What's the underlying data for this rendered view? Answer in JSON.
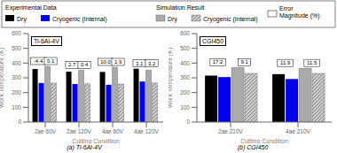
{
  "error_label": "Error\nMagnitude (%)",
  "chart_data": [
    {
      "type": "bar",
      "title": "Ti-6Al-4V",
      "subtitle": "(a)  Ti-6Al-4V",
      "xlabel": "Cutting Condition",
      "ylabel": "Work Temperature (K)",
      "categories": [
        "2ae 60V",
        "2ae 120V",
        "4ae 60V",
        "4ae 120V"
      ],
      "series": [
        {
          "name": "Dry",
          "group": "Experimental Data",
          "color": "#000000",
          "values": [
            360,
            342,
            340,
            362
          ]
        },
        {
          "name": "Cryogenic (Internal)",
          "group": "Experimental Data",
          "color": "#0000ee",
          "values": [
            265,
            258,
            253,
            275
          ]
        },
        {
          "name": "Dry",
          "group": "Simulation Result",
          "color": "#aaaaaa",
          "values": [
            378,
            352,
            372,
            352
          ]
        },
        {
          "name": "Cryogenic (Internal)",
          "group": "Simulation Result",
          "color": "#cccccc",
          "values": [
            265,
            260,
            258,
            265
          ]
        }
      ],
      "errors": [
        {
          "group": "Experimental Data",
          "values": [
            -4.4,
            2.7,
            10.0,
            3.1
          ],
          "value_labels": [
            "-4.4",
            "2.7",
            "10.0",
            "3.1"
          ]
        },
        {
          "group": "Simulation Result",
          "values": [
            0.1,
            0.4,
            1.9,
            3.2
          ],
          "value_labels": [
            "0.1",
            "0.4",
            "1.9",
            "3.2"
          ]
        }
      ],
      "ylim": [
        0,
        600
      ],
      "yticks": [
        0,
        100,
        200,
        300,
        400,
        500,
        600
      ],
      "grid": false
    },
    {
      "type": "bar",
      "title": "CGI450",
      "subtitle": "(b)  CGI450",
      "xlabel": "Cutting Condition",
      "ylabel": "Work Temperature (K)",
      "categories": [
        "2ae 210V",
        "4ae 210V"
      ],
      "series": [
        {
          "name": "Dry",
          "group": "Experimental Data",
          "color": "#000000",
          "values": [
            315,
            325
          ]
        },
        {
          "name": "Cryogenic (Internal)",
          "group": "Experimental Data",
          "color": "#0000ee",
          "values": [
            305,
            292
          ]
        },
        {
          "name": "Dry",
          "group": "Simulation Result",
          "color": "#aaaaaa",
          "values": [
            370,
            365
          ]
        },
        {
          "name": "Cryogenic (Internal)",
          "group": "Simulation Result",
          "color": "#cccccc",
          "values": [
            330,
            330
          ]
        }
      ],
      "errors": [
        {
          "group": "Experimental Data",
          "values": [
            17.2,
            11.9
          ],
          "value_labels": [
            "17.2",
            "11.9"
          ]
        },
        {
          "group": "Simulation Result",
          "values": [
            9.1,
            11.5
          ],
          "value_labels": [
            "9.1",
            "11.5"
          ]
        }
      ],
      "ylim": [
        0,
        600
      ],
      "yticks": [
        0,
        100,
        200,
        300,
        400,
        500,
        600
      ],
      "grid": false
    }
  ]
}
